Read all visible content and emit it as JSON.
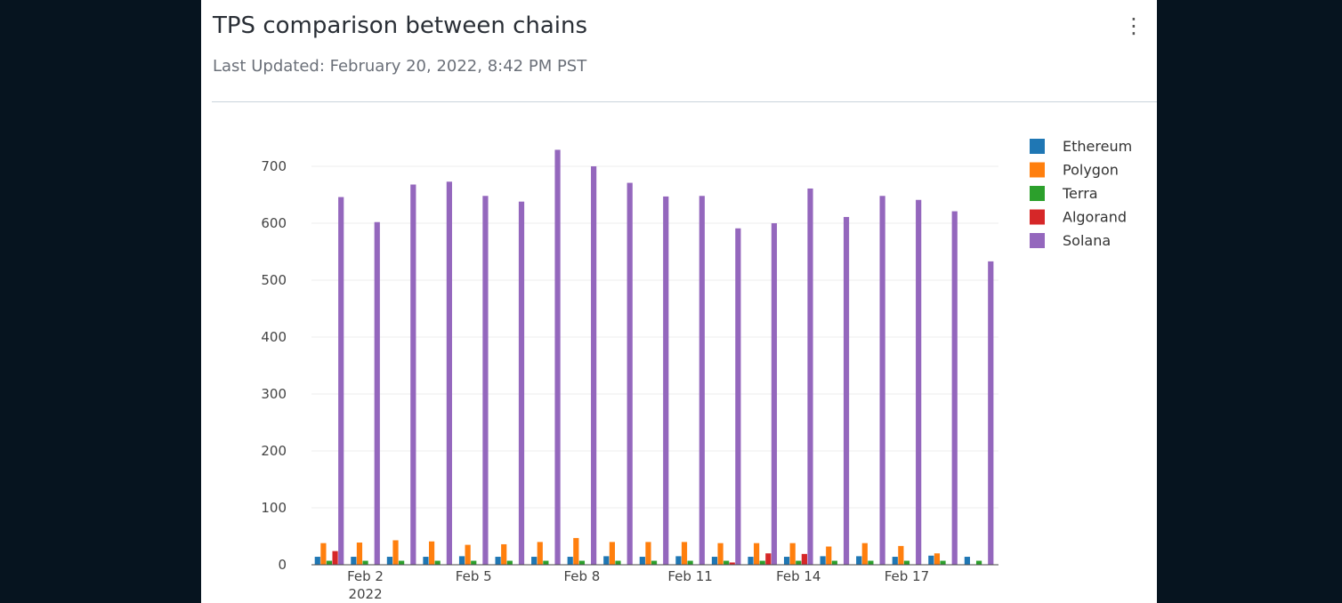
{
  "header": {
    "title": "TPS comparison between chains",
    "last_updated": "Last Updated: February 20, 2022, 8:42 PM PST",
    "menu_icon": "more-vertical-icon"
  },
  "chart_data": {
    "type": "bar",
    "title": "TPS comparison between chains",
    "xlabel": "",
    "ylabel": "",
    "ylim": [
      0,
      700
    ],
    "yticks": [
      0,
      100,
      200,
      300,
      400,
      500,
      600,
      700
    ],
    "x": [
      "2022-02-01",
      "2022-02-02",
      "2022-02-03",
      "2022-02-04",
      "2022-02-05",
      "2022-02-06",
      "2022-02-07",
      "2022-02-08",
      "2022-02-09",
      "2022-02-10",
      "2022-02-11",
      "2022-02-12",
      "2022-02-13",
      "2022-02-14",
      "2022-02-15",
      "2022-02-16",
      "2022-02-17",
      "2022-02-18",
      "2022-02-19"
    ],
    "xticks": [
      {
        "index": 1,
        "label": "Feb 2",
        "sub": "2022"
      },
      {
        "index": 4,
        "label": "Feb 5"
      },
      {
        "index": 7,
        "label": "Feb 8"
      },
      {
        "index": 10,
        "label": "Feb 11"
      },
      {
        "index": 13,
        "label": "Feb 14"
      },
      {
        "index": 16,
        "label": "Feb 17"
      }
    ],
    "grid": true,
    "legend_position": "right",
    "series": [
      {
        "name": "Ethereum",
        "color": "#1f77b4",
        "values": [
          14,
          14,
          14,
          14,
          15,
          14,
          14,
          14,
          15,
          14,
          15,
          14,
          14,
          14,
          15,
          15,
          14,
          16,
          14
        ]
      },
      {
        "name": "Polygon",
        "color": "#ff7f0e",
        "values": [
          38,
          39,
          43,
          41,
          35,
          36,
          40,
          47,
          40,
          40,
          40,
          38,
          38,
          38,
          32,
          38,
          33,
          20,
          null
        ]
      },
      {
        "name": "Terra",
        "color": "#2ca02c",
        "values": [
          7,
          7,
          7,
          7,
          7,
          7,
          7,
          7,
          7,
          7,
          7,
          7,
          7,
          7,
          7,
          7,
          7,
          7,
          7
        ]
      },
      {
        "name": "Algorand",
        "color": "#d62728",
        "values": [
          24,
          null,
          null,
          null,
          null,
          null,
          null,
          null,
          null,
          null,
          null,
          4,
          20,
          19,
          null,
          null,
          null,
          null,
          null
        ]
      },
      {
        "name": "Solana",
        "color": "#9467bd",
        "values": [
          646,
          602,
          668,
          673,
          648,
          638,
          729,
          700,
          671,
          647,
          648,
          591,
          600,
          661,
          611,
          648,
          641,
          621,
          533
        ]
      }
    ]
  }
}
